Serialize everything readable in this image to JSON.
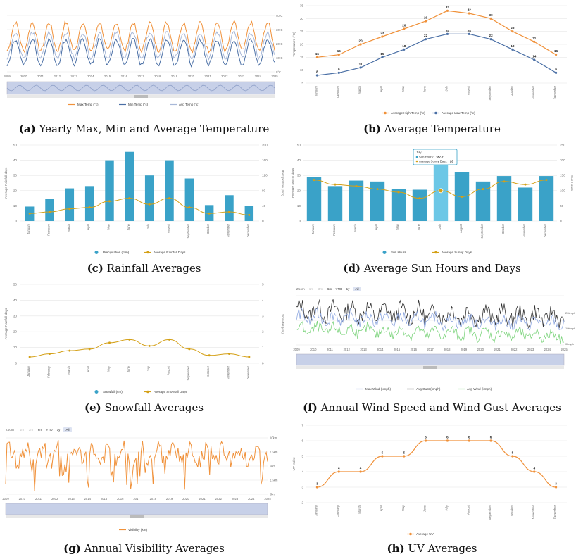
{
  "years": [
    "2009",
    "2010",
    "2011",
    "2012",
    "2013",
    "2014",
    "2015",
    "2016",
    "2017",
    "2018",
    "2019",
    "2020",
    "2021",
    "2022",
    "2023",
    "2024",
    "2025"
  ],
  "months": [
    "January",
    "February",
    "March",
    "April",
    "May",
    "June",
    "July",
    "August",
    "September",
    "October",
    "November",
    "December"
  ],
  "zoom": {
    "label": "Zoom",
    "options": [
      "1m",
      "3m",
      "6m",
      "YTD",
      "1y",
      "All"
    ]
  },
  "colors": {
    "orange": "#f0913a",
    "blue": "#4a6fa5",
    "teal": "#3aa2c8",
    "gold": "#d4a017",
    "grid": "#e6e6e6",
    "navigator": "#c7d0e8"
  },
  "panels": {
    "a": {
      "letter": "(a)",
      "text": "Yearly Max, Min and Average Temperature",
      "right_axis": [
        "40°C",
        "30°C",
        "20°C",
        "10°C",
        "0°C"
      ],
      "legend": [
        "Max Temp (°c)",
        "Min Temp (°c)",
        "Avg Temp (°c)"
      ]
    },
    "b": {
      "letter": "(b)",
      "text": "Average Temperature",
      "ylabel": "Temperature (°C)",
      "legend": [
        "Average High Temp (°c)",
        "Average Low Temp (°c)"
      ]
    },
    "c": {
      "letter": "(c)",
      "text": "Rainfall Averages",
      "ylabel_left": "Average Rainfall days",
      "ylabel_right": "Precipitation (mm)",
      "legend": [
        "Precipitation (mm)",
        "Average Rainfall Days"
      ]
    },
    "d": {
      "letter": "(d)",
      "text": "Average Sun Hours and Days",
      "ylabel_left": "Average Sunny days",
      "ylabel_right": "Sun Hours",
      "tooltip": {
        "title": "July",
        "line1_label": "Sun Hours:",
        "line1_value": "187.2",
        "line2_label": "Average Sunny Days:",
        "line2_value": "20"
      },
      "legend": [
        "Sun Hours",
        "Average Sunny Days"
      ]
    },
    "e": {
      "letter": "(e)",
      "text": "Snowfall Averages",
      "ylabel_left": "Average Rainfall days",
      "ylabel_right": "Snowfall (cm)",
      "legend": [
        "Snowfall (cm)",
        "Average Snowfall Days"
      ]
    },
    "f": {
      "letter": "(f)",
      "text": "Annual Wind Speed and Wind Gust Averages",
      "right_axis": [
        "20kmph",
        "10kmph",
        "0kmph"
      ],
      "legend": [
        "Max Wind (kmph)",
        "Avg Gust (kmph)",
        "Avg Wind (kmph)"
      ]
    },
    "g": {
      "letter": "(g)",
      "text": "Annual Visibility Averages",
      "right_axis": [
        "10km",
        "7.5km",
        "5km",
        "2.5km",
        "0km"
      ],
      "legend": [
        "Visibility (km)"
      ]
    },
    "h": {
      "letter": "(h)",
      "text": "UV Averages",
      "ylabel": "UV Index",
      "legend": [
        "Average UV"
      ]
    }
  },
  "chart_data": [
    {
      "id": "a",
      "type": "line",
      "title": "Yearly Max, Min and Average Temperature",
      "x": "2009-2025 (monthly)",
      "series": [
        {
          "name": "Max Temp (°c)",
          "pattern": "seasonal",
          "min": 15,
          "max": 35
        },
        {
          "name": "Min Temp (°c)",
          "pattern": "seasonal",
          "min": 5,
          "max": 23
        },
        {
          "name": "Avg Temp (°c)",
          "pattern": "seasonal",
          "min": 10,
          "max": 28
        }
      ]
    },
    {
      "id": "b",
      "type": "line",
      "title": "Average Temperature",
      "categories": [
        "January",
        "February",
        "March",
        "April",
        "May",
        "June",
        "July",
        "August",
        "September",
        "October",
        "November",
        "December"
      ],
      "series": [
        {
          "name": "Average High Temp (°c)",
          "values": [
            15,
            16,
            20,
            23,
            26,
            29,
            33,
            32,
            30,
            25,
            21,
            16
          ]
        },
        {
          "name": "Average Low Temp (°c)",
          "values": [
            8,
            9,
            11,
            15,
            18,
            22,
            24,
            24,
            22,
            18,
            14,
            9
          ]
        }
      ],
      "yticks": [
        5,
        10,
        15,
        20,
        25,
        30,
        35
      ],
      "ylim": [
        5,
        35
      ]
    },
    {
      "id": "c",
      "type": "bar",
      "title": "Rainfall Averages",
      "categories": [
        "January",
        "February",
        "March",
        "April",
        "May",
        "June",
        "July",
        "August",
        "September",
        "October",
        "November",
        "December"
      ],
      "series": [
        {
          "name": "Precipitation (mm)",
          "axis": "right",
          "values": [
            38,
            58,
            86,
            92,
            160,
            182,
            120,
            160,
            112,
            42,
            68,
            40
          ]
        },
        {
          "name": "Average Rainfall Days",
          "axis": "left",
          "values": [
            5,
            6,
            8,
            9,
            13,
            15,
            11,
            15,
            9,
            5,
            6,
            4
          ]
        }
      ],
      "yticks_left": [
        0,
        10,
        20,
        30,
        40,
        50
      ],
      "yticks_right": [
        0,
        40,
        80,
        120,
        160,
        200
      ]
    },
    {
      "id": "d",
      "type": "bar",
      "title": "Average Sun Hours and Days",
      "categories": [
        "January",
        "February",
        "March",
        "April",
        "May",
        "June",
        "July",
        "August",
        "September",
        "October",
        "November",
        "December"
      ],
      "series": [
        {
          "name": "Sun Hours",
          "axis": "right",
          "values": [
            145,
            115,
            133,
            130,
            105,
            103,
            187.2,
            162,
            130,
            148,
            110,
            148
          ]
        },
        {
          "name": "Average Sunny Days",
          "axis": "left",
          "values": [
            27,
            24,
            23,
            21,
            19,
            15,
            20,
            16,
            21,
            26,
            24,
            27
          ]
        }
      ],
      "yticks_left": [
        0,
        10,
        20,
        30,
        40,
        50
      ],
      "yticks_right": [
        0,
        50,
        100,
        150,
        200,
        250
      ]
    },
    {
      "id": "e",
      "type": "line",
      "title": "Snowfall Averages",
      "categories": [
        "January",
        "February",
        "March",
        "April",
        "May",
        "June",
        "July",
        "August",
        "September",
        "October",
        "November",
        "December"
      ],
      "series": [
        {
          "name": "Snowfall (cm)",
          "axis": "right",
          "values": [
            0,
            0,
            0,
            0,
            0,
            0,
            0,
            0,
            0,
            0,
            0,
            0
          ]
        },
        {
          "name": "Average Snowfall Days",
          "axis": "left",
          "values": [
            4,
            6,
            8,
            9,
            13,
            15,
            11,
            15,
            9,
            5,
            6,
            4
          ]
        }
      ],
      "yticks_left": [
        0,
        10,
        20,
        30,
        40,
        50
      ],
      "yticks_right": [
        0,
        1,
        2,
        3,
        4,
        5
      ]
    },
    {
      "id": "f",
      "type": "line",
      "title": "Annual Wind Speed and Wind Gust Averages",
      "x": "2009-2025 (monthly)",
      "series": [
        {
          "name": "Max Wind (kmph)",
          "min": 12,
          "max": 22
        },
        {
          "name": "Avg Gust (kmph)",
          "min": 14,
          "max": 28
        },
        {
          "name": "Avg Wind (kmph)",
          "min": 5,
          "max": 14
        }
      ]
    },
    {
      "id": "g",
      "type": "line",
      "title": "Annual Visibility Averages",
      "x": "2009-2025 (monthly)",
      "series": [
        {
          "name": "Visibility (km)",
          "min": 1,
          "max": 10
        }
      ]
    },
    {
      "id": "h",
      "type": "line",
      "title": "UV Averages",
      "categories": [
        "January",
        "February",
        "March",
        "April",
        "May",
        "June",
        "July",
        "August",
        "September",
        "October",
        "November",
        "December"
      ],
      "series": [
        {
          "name": "Average UV",
          "values": [
            3,
            4,
            4,
            5,
            5,
            6,
            6,
            6,
            6,
            5,
            4,
            3
          ]
        }
      ],
      "yticks": [
        2,
        3,
        4,
        5,
        6,
        7
      ],
      "ylim": [
        2,
        7
      ]
    }
  ]
}
